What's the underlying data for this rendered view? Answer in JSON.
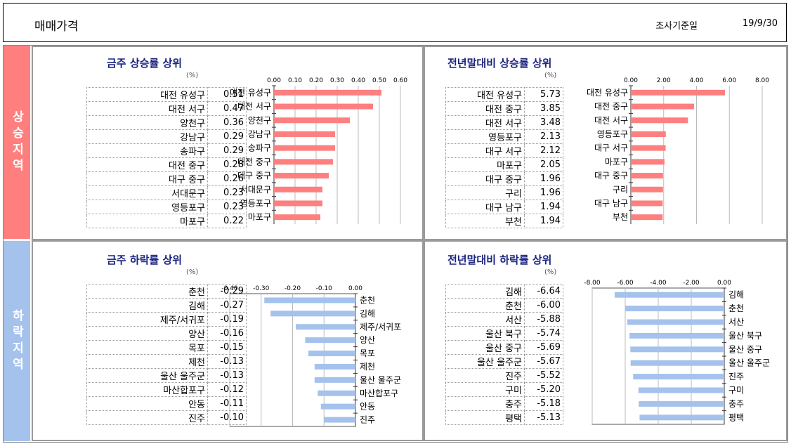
{
  "header": {
    "title": "매매가격",
    "date_label": "조사기준일",
    "date_value": "19/9/30"
  },
  "sections": {
    "rise": "상승지역",
    "fall": "하락지역"
  },
  "unit": "(%)",
  "colors": {
    "rise": "#ff7f7f",
    "fall": "#a4c2ec"
  },
  "chart_data": [
    {
      "type": "bar",
      "title": "금주 상승률 상위",
      "categories": [
        "대전 유성구",
        "대전 서구",
        "양천구",
        "강남구",
        "송파구",
        "대전 중구",
        "대구 중구",
        "서대문구",
        "영등포구",
        "마포구"
      ],
      "values": [
        0.51,
        0.47,
        0.36,
        0.29,
        0.29,
        0.28,
        0.26,
        0.23,
        0.23,
        0.22
      ],
      "display": [
        "0.51",
        "0.47",
        "0.36",
        "0.29",
        "0.29",
        "0.28",
        "0.26",
        "0.23",
        "0.23",
        "0.22"
      ],
      "xlim": [
        0,
        0.6
      ],
      "ticks": [
        "0.00",
        "0.10",
        "0.20",
        "0.30",
        "0.40",
        "0.50",
        "0.60"
      ],
      "tick_values": [
        0,
        0.1,
        0.2,
        0.3,
        0.4,
        0.5,
        0.6
      ]
    },
    {
      "type": "bar",
      "title": "전년말대비 상승률 상위",
      "categories": [
        "대전 유성구",
        "대전 중구",
        "대전 서구",
        "영등포구",
        "대구 서구",
        "마포구",
        "대구 중구",
        "구리",
        "대구 남구",
        "부천"
      ],
      "values": [
        5.73,
        3.85,
        3.48,
        2.13,
        2.12,
        2.05,
        1.96,
        1.96,
        1.94,
        1.94
      ],
      "display": [
        "5.73",
        "3.85",
        "3.48",
        "2.13",
        "2.12",
        "2.05",
        "1.96",
        "1.96",
        "1.94",
        "1.94"
      ],
      "xlim": [
        0,
        8
      ],
      "ticks": [
        "0.00",
        "2.00",
        "4.00",
        "6.00",
        "8.00"
      ],
      "tick_values": [
        0,
        2,
        4,
        6,
        8
      ]
    },
    {
      "type": "bar",
      "title": "금주 하락률 상위",
      "categories": [
        "춘천",
        "김해",
        "제주/서귀포",
        "양산",
        "목포",
        "제천",
        "울산 울주군",
        "마산합포구",
        "안동",
        "진주"
      ],
      "values": [
        -0.29,
        -0.27,
        -0.19,
        -0.16,
        -0.15,
        -0.13,
        -0.13,
        -0.12,
        -0.11,
        -0.1
      ],
      "display": [
        "-0.29",
        "-0.27",
        "-0.19",
        "-0.16",
        "-0.15",
        "-0.13",
        "-0.13",
        "-0.12",
        "-0.11",
        "-0.10"
      ],
      "xlim": [
        -0.4,
        0
      ],
      "ticks": [
        "-0.40",
        "-0.30",
        "-0.20",
        "-0.10",
        "0.00"
      ],
      "tick_values": [
        -0.4,
        -0.3,
        -0.2,
        -0.1,
        0
      ]
    },
    {
      "type": "bar",
      "title": "전년말대비 하락률 상위",
      "categories": [
        "김해",
        "춘천",
        "서산",
        "울산 북구",
        "울산 중구",
        "울산 울주군",
        "진주",
        "구미",
        "충주",
        "평택"
      ],
      "values": [
        -6.64,
        -6.0,
        -5.88,
        -5.74,
        -5.69,
        -5.67,
        -5.52,
        -5.2,
        -5.18,
        -5.13
      ],
      "display": [
        "-6.64",
        "-6.00",
        "-5.88",
        "-5.74",
        "-5.69",
        "-5.67",
        "-5.52",
        "-5.20",
        "-5.18",
        "-5.13"
      ],
      "xlim": [
        -8,
        0
      ],
      "ticks": [
        "-8.00",
        "-6.00",
        "-4.00",
        "-2.00",
        "0.00"
      ],
      "tick_values": [
        -8,
        -6,
        -4,
        -2,
        0
      ]
    }
  ]
}
